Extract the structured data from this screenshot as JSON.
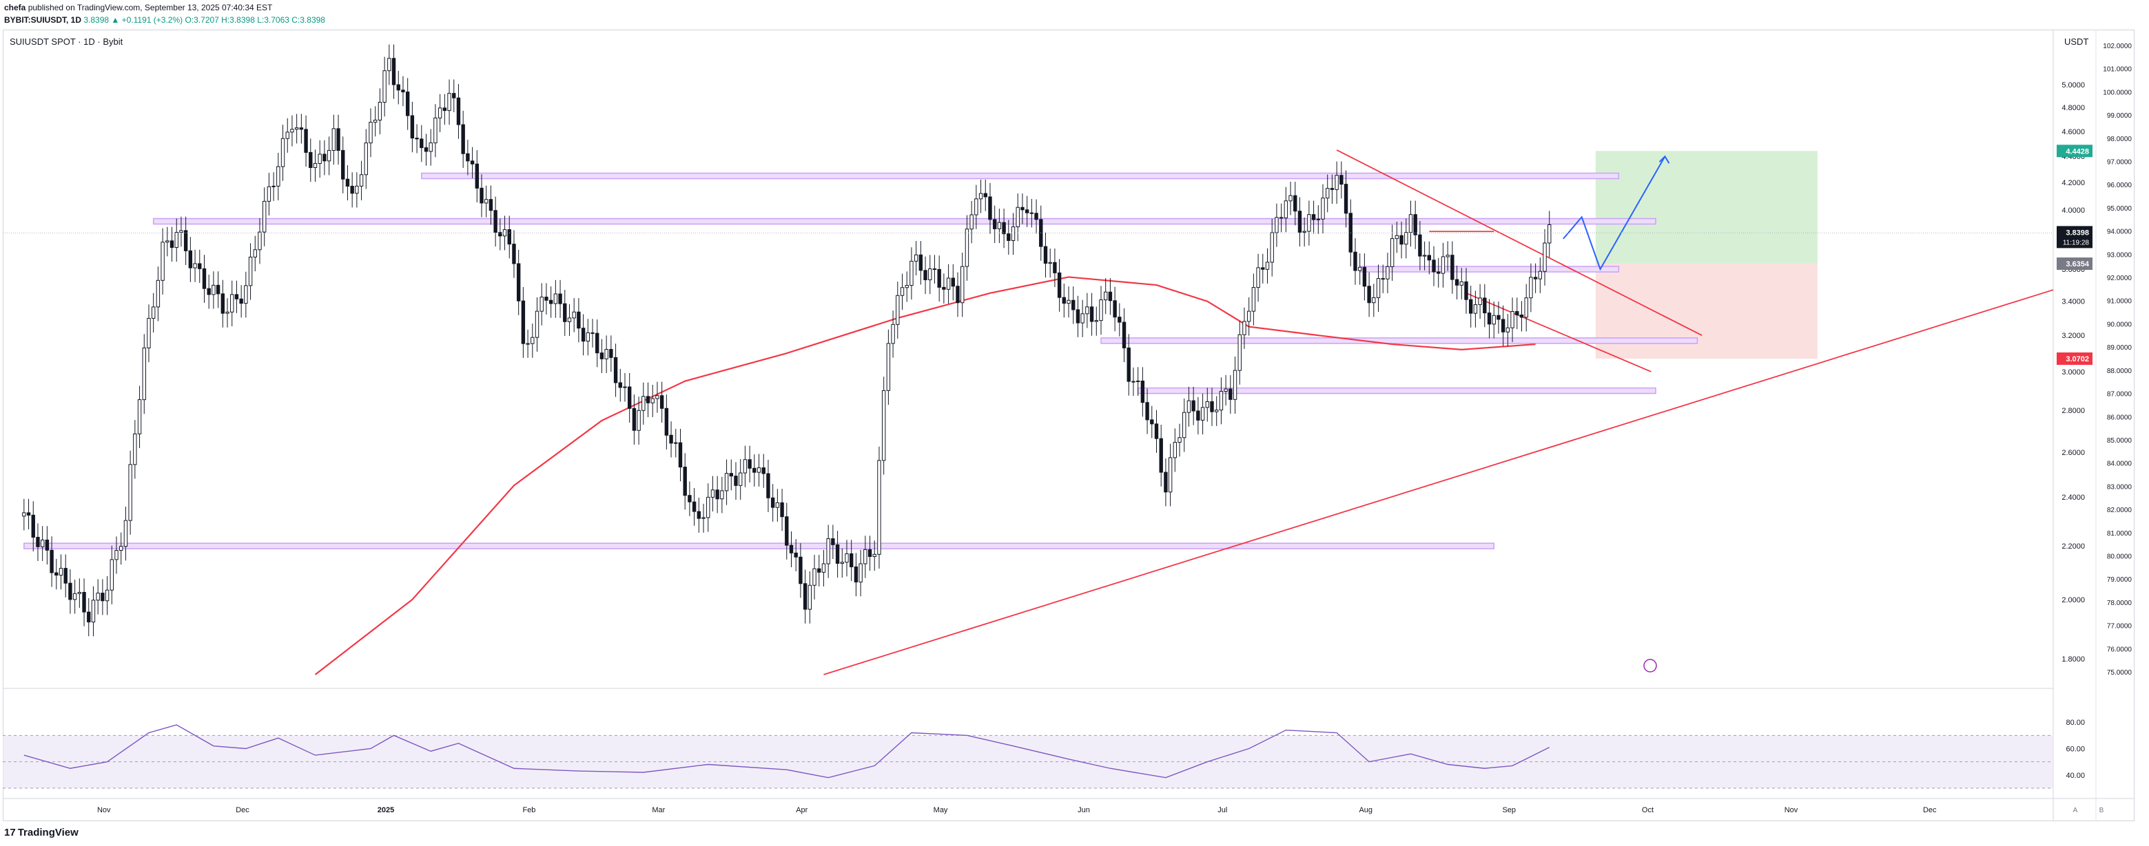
{
  "header": {
    "publisher": "chefa",
    "published_text": "published on TradingView.com, September 13, 2025 07:40:34 EST",
    "ticker_line": "BYBIT:SUIUSDT, 1D",
    "change": "3.8398 ▲ +0.1191 (+3.2%)",
    "ohlc": "O:3.7207 H:3.8398 L:3.7063 C:3.8398"
  },
  "symbol_label": "SUIUSDT SPOT · 1D · Bybit",
  "price_unit": "USDT",
  "footer": {
    "logo": "TradingView",
    "scale_a": "A",
    "scale_b": "B"
  },
  "colors": {
    "up": "#131722",
    "down": "#131722",
    "ma": "#f23645",
    "rsi": "#7e57c2",
    "zone": "#c9a2f5",
    "zone_fill": "#eedcfc",
    "target": "#b7e4b3",
    "stop": "#f7c6c6",
    "path": "#2962ff"
  },
  "chart_data": {
    "type": "candlestick",
    "title": "SUIUSDT SPOT · 1D · Bybit",
    "ylabel": "USDT",
    "x_ticks": [
      "Nov",
      "Dec",
      "2025",
      "Feb",
      "Mar",
      "Apr",
      "May",
      "Jun",
      "Jul",
      "Aug",
      "Sep",
      "Oct",
      "Nov",
      "Dec"
    ],
    "y_ticks_left": [
      "5.0000",
      "4.8000",
      "4.6000",
      "4.4000",
      "4.2000",
      "4.0000",
      "3.8000",
      "3.6000",
      "3.4000",
      "3.2000",
      "3.0000",
      "2.8000",
      "2.6000",
      "2.4000",
      "2.2000",
      "2.0000",
      "1.8000"
    ],
    "y_ticks_right": [
      "102.0000",
      "101.0000",
      "100.0000",
      "99.0000",
      "98.0000",
      "97.0000",
      "96.0000",
      "95.0000",
      "94.0000",
      "93.0000",
      "92.0000",
      "91.0000",
      "90.0000",
      "89.0000",
      "88.0000",
      "87.0000",
      "86.0000",
      "85.0000",
      "84.0000",
      "83.0000",
      "82.0000",
      "81.0000",
      "80.0000",
      "79.0000",
      "78.0000",
      "77.0000",
      "76.0000",
      "75.0000"
    ],
    "ylim": [
      1.75,
      5.5
    ],
    "last_price": {
      "value": "3.8398",
      "countdown": "11:19:28"
    },
    "price_tags": [
      {
        "name": "target",
        "value": "4.4428"
      },
      {
        "name": "entry",
        "value": "3.6354"
      },
      {
        "name": "stop",
        "value": "3.0702"
      }
    ],
    "close_points": [
      [
        "2024-10-18",
        2.32
      ],
      [
        "2024-10-25",
        2.1
      ],
      [
        "2024-11-01",
        1.95
      ],
      [
        "2024-11-05",
        2.05
      ],
      [
        "2024-11-09",
        2.3
      ],
      [
        "2024-11-13",
        3.1
      ],
      [
        "2024-11-17",
        3.72
      ],
      [
        "2024-11-20",
        3.85
      ],
      [
        "2024-11-25",
        3.55
      ],
      [
        "2024-12-01",
        3.35
      ],
      [
        "2024-12-05",
        3.48
      ],
      [
        "2024-12-08",
        3.9
      ],
      [
        "2024-12-12",
        4.35
      ],
      [
        "2024-12-15",
        4.7
      ],
      [
        "2024-12-20",
        4.3
      ],
      [
        "2024-12-24",
        4.55
      ],
      [
        "2024-12-28",
        4.05
      ],
      [
        "2025-01-02",
        4.75
      ],
      [
        "2025-01-05",
        5.2
      ],
      [
        "2025-01-08",
        4.85
      ],
      [
        "2025-01-12",
        4.4
      ],
      [
        "2025-01-15",
        4.65
      ],
      [
        "2025-01-18",
        4.95
      ],
      [
        "2025-01-22",
        4.35
      ],
      [
        "2025-01-27",
        3.95
      ],
      [
        "2025-02-01",
        3.7
      ],
      [
        "2025-02-03",
        3.1
      ],
      [
        "2025-02-08",
        3.45
      ],
      [
        "2025-02-15",
        3.25
      ],
      [
        "2025-02-22",
        3.05
      ],
      [
        "2025-02-27",
        2.75
      ],
      [
        "2025-03-03",
        2.9
      ],
      [
        "2025-03-08",
        2.6
      ],
      [
        "2025-03-12",
        2.3
      ],
      [
        "2025-03-18",
        2.45
      ],
      [
        "2025-03-25",
        2.55
      ],
      [
        "2025-03-31",
        2.3
      ],
      [
        "2025-04-05",
        2.0
      ],
      [
        "2025-04-10",
        2.2
      ],
      [
        "2025-04-16",
        2.1
      ],
      [
        "2025-04-20",
        2.2
      ],
      [
        "2025-04-23",
        3.2
      ],
      [
        "2025-04-28",
        3.65
      ],
      [
        "2025-05-03",
        3.55
      ],
      [
        "2025-05-08",
        3.45
      ],
      [
        "2025-05-12",
        4.15
      ],
      [
        "2025-05-18",
        3.8
      ],
      [
        "2025-05-23",
        4.05
      ],
      [
        "2025-05-28",
        3.6
      ],
      [
        "2025-06-01",
        3.35
      ],
      [
        "2025-06-06",
        3.3
      ],
      [
        "2025-06-10",
        3.45
      ],
      [
        "2025-06-14",
        3.0
      ],
      [
        "2025-06-18",
        2.8
      ],
      [
        "2025-06-22",
        2.45
      ],
      [
        "2025-06-26",
        2.8
      ],
      [
        "2025-07-01",
        2.8
      ],
      [
        "2025-07-06",
        2.9
      ],
      [
        "2025-07-10",
        3.4
      ],
      [
        "2025-07-14",
        3.7
      ],
      [
        "2025-07-18",
        4.1
      ],
      [
        "2025-07-22",
        3.85
      ],
      [
        "2025-07-27",
        4.1
      ],
      [
        "2025-07-29",
        4.3
      ],
      [
        "2025-08-02",
        3.6
      ],
      [
        "2025-08-06",
        3.4
      ],
      [
        "2025-08-10",
        3.75
      ],
      [
        "2025-08-14",
        3.9
      ],
      [
        "2025-08-18",
        3.6
      ],
      [
        "2025-08-22",
        3.65
      ],
      [
        "2025-08-26",
        3.4
      ],
      [
        "2025-08-30",
        3.35
      ],
      [
        "2025-09-02",
        3.25
      ],
      [
        "2025-09-06",
        3.3
      ],
      [
        "2025-09-10",
        3.55
      ],
      [
        "2025-09-13",
        3.8398
      ]
    ],
    "moving_average": [
      [
        "2024-12-20",
        1.75
      ],
      [
        "2025-01-10",
        2.0
      ],
      [
        "2025-02-01",
        2.45
      ],
      [
        "2025-02-20",
        2.75
      ],
      [
        "2025-03-10",
        2.95
      ],
      [
        "2025-04-01",
        3.1
      ],
      [
        "2025-04-25",
        3.3
      ],
      [
        "2025-05-15",
        3.45
      ],
      [
        "2025-06-01",
        3.55
      ],
      [
        "2025-06-20",
        3.5
      ],
      [
        "2025-07-01",
        3.4
      ],
      [
        "2025-07-10",
        3.25
      ],
      [
        "2025-07-25",
        3.2
      ],
      [
        "2025-08-10",
        3.15
      ],
      [
        "2025-08-25",
        3.12
      ],
      [
        "2025-09-10",
        3.15
      ]
    ],
    "zones": [
      {
        "from": "2024-11-15",
        "to": "2025-10-06",
        "price": 3.92
      },
      {
        "from": "2025-01-12",
        "to": "2025-09-28",
        "price": 4.25
      },
      {
        "from": "2025-08-03",
        "to": "2025-09-28",
        "price": 3.6
      },
      {
        "from": "2025-06-08",
        "to": "2025-10-15",
        "price": 3.17
      },
      {
        "from": "2025-06-16",
        "to": "2025-10-06",
        "price": 2.9
      },
      {
        "from": "2024-10-18",
        "to": "2025-09-01",
        "price": 2.2
      }
    ],
    "trendlines": [
      {
        "from": [
          "2025-07-29",
          4.45
        ],
        "to": [
          "2025-10-16",
          3.2
        ]
      },
      {
        "from": [
          "2025-04-09",
          1.75
        ],
        "to": [
          "2025-12-31",
          3.47
        ]
      },
      {
        "from": [
          "2025-08-26",
          3.45
        ],
        "to": [
          "2025-10-05",
          3.0
        ]
      },
      {
        "from": [
          "2025-08-18",
          3.85
        ],
        "to": [
          "2025-09-01",
          3.85
        ]
      }
    ],
    "position": {
      "from": "2025-09-23",
      "to": "2025-11-10",
      "target": 4.4428,
      "entry": 3.6354,
      "stop": 3.0702
    },
    "projection": [
      [
        "2025-09-16",
        3.8
      ],
      [
        "2025-09-20",
        3.95
      ],
      [
        "2025-09-24",
        3.6
      ],
      [
        "2025-10-08",
        4.4
      ]
    ],
    "rsi": {
      "y_ticks": [
        "80.00",
        "60.00",
        "40.00"
      ],
      "ylim": [
        30,
        90
      ],
      "band": [
        30,
        70
      ],
      "points": [
        [
          "2024-10-18",
          55
        ],
        [
          "2024-10-28",
          45
        ],
        [
          "2024-11-05",
          50
        ],
        [
          "2024-11-14",
          72
        ],
        [
          "2024-11-20",
          78
        ],
        [
          "2024-11-28",
          62
        ],
        [
          "2024-12-05",
          60
        ],
        [
          "2024-12-12",
          68
        ],
        [
          "2024-12-20",
          55
        ],
        [
          "2025-01-01",
          60
        ],
        [
          "2025-01-06",
          70
        ],
        [
          "2025-01-14",
          58
        ],
        [
          "2025-01-20",
          64
        ],
        [
          "2025-02-01",
          45
        ],
        [
          "2025-02-15",
          43
        ],
        [
          "2025-03-01",
          42
        ],
        [
          "2025-03-15",
          48
        ],
        [
          "2025-04-01",
          44
        ],
        [
          "2025-04-10",
          38
        ],
        [
          "2025-04-20",
          47
        ],
        [
          "2025-04-28",
          72
        ],
        [
          "2025-05-10",
          70
        ],
        [
          "2025-05-20",
          62
        ],
        [
          "2025-06-01",
          52
        ],
        [
          "2025-06-10",
          45
        ],
        [
          "2025-06-22",
          38
        ],
        [
          "2025-07-01",
          50
        ],
        [
          "2025-07-10",
          60
        ],
        [
          "2025-07-18",
          74
        ],
        [
          "2025-07-29",
          72
        ],
        [
          "2025-08-05",
          50
        ],
        [
          "2025-08-14",
          56
        ],
        [
          "2025-08-22",
          48
        ],
        [
          "2025-08-30",
          45
        ],
        [
          "2025-09-05",
          47
        ],
        [
          "2025-09-13",
          61
        ]
      ]
    }
  }
}
